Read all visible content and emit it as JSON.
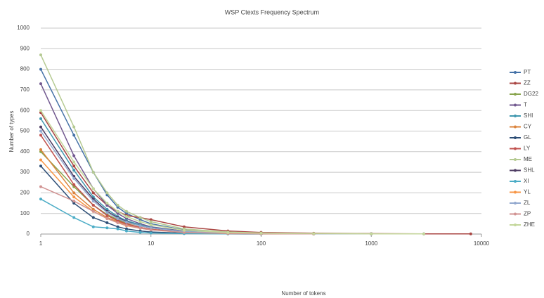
{
  "chart_data": {
    "type": "line",
    "title": "WSP Ctexts Frequency Spectrum",
    "x_label": "Number of tokens",
    "y_label": "Number of types",
    "log_x": true,
    "grid": true,
    "legend": "right",
    "xlim": [
      1,
      10000
    ],
    "xticks": [
      1,
      10,
      100,
      1000,
      10000
    ],
    "ylim": [
      0,
      1000
    ],
    "yticks": [
      0,
      100,
      200,
      300,
      400,
      500,
      600,
      700,
      800,
      900,
      1000
    ],
    "x": [
      1,
      2,
      3,
      4,
      5,
      6,
      8,
      10,
      20,
      50,
      100,
      300,
      1000,
      3000,
      8000
    ],
    "series": [
      {
        "name": "PT",
        "color": "#4572a7",
        "values": [
          800,
          480,
          300,
          190,
          130,
          100,
          70,
          50,
          20,
          8,
          4,
          2,
          1,
          1,
          null
        ]
      },
      {
        "name": "ZZ",
        "color": "#aa4643",
        "values": [
          590,
          330,
          200,
          140,
          110,
          90,
          80,
          70,
          35,
          15,
          8,
          4,
          2,
          1,
          1
        ]
      },
      {
        "name": "DG22",
        "color": "#89a54e",
        "values": [
          400,
          230,
          140,
          95,
          70,
          55,
          40,
          30,
          15,
          6,
          3,
          2,
          1,
          null,
          null
        ]
      },
      {
        "name": "T",
        "color": "#71588f",
        "values": [
          730,
          380,
          220,
          140,
          100,
          75,
          50,
          35,
          14,
          5,
          3,
          1,
          1,
          null,
          null
        ]
      },
      {
        "name": "SHI",
        "color": "#4198af",
        "values": [
          560,
          310,
          180,
          120,
          85,
          65,
          45,
          32,
          12,
          5,
          2,
          1,
          1,
          null,
          null
        ]
      },
      {
        "name": "CY",
        "color": "#db843d",
        "values": [
          410,
          200,
          120,
          80,
          60,
          45,
          30,
          22,
          9,
          4,
          2,
          1,
          null,
          null,
          null
        ]
      },
      {
        "name": "GL",
        "color": "#2c4d75",
        "values": [
          330,
          150,
          80,
          55,
          35,
          25,
          15,
          10,
          4,
          2,
          1,
          null,
          null,
          null,
          null
        ]
      },
      {
        "name": "LY",
        "color": "#c0504d",
        "values": [
          480,
          240,
          140,
          90,
          65,
          50,
          32,
          23,
          9,
          4,
          2,
          1,
          1,
          null,
          null
        ]
      },
      {
        "name": "ME",
        "color": "#b5ca92",
        "values": [
          870,
          520,
          300,
          200,
          140,
          110,
          80,
          60,
          25,
          10,
          5,
          2,
          1,
          1,
          null
        ]
      },
      {
        "name": "SHL",
        "color": "#4d3b62",
        "values": [
          520,
          280,
          170,
          110,
          80,
          60,
          40,
          30,
          12,
          5,
          2,
          1,
          1,
          null,
          null
        ]
      },
      {
        "name": "XI",
        "color": "#4bacc6",
        "values": [
          170,
          80,
          35,
          30,
          25,
          15,
          8,
          5,
          2,
          1,
          null,
          null,
          null,
          null,
          null
        ]
      },
      {
        "name": "YL",
        "color": "#f79646",
        "values": [
          360,
          180,
          110,
          75,
          55,
          40,
          28,
          20,
          8,
          3,
          2,
          1,
          null,
          null,
          null
        ]
      },
      {
        "name": "ZL",
        "color": "#93a9cf",
        "values": [
          500,
          270,
          160,
          105,
          75,
          58,
          40,
          30,
          12,
          5,
          3,
          1,
          1,
          1,
          null
        ]
      },
      {
        "name": "ZP",
        "color": "#d19392",
        "values": [
          230,
          160,
          110,
          75,
          55,
          42,
          28,
          20,
          8,
          3,
          2,
          1,
          null,
          null,
          null
        ]
      },
      {
        "name": "ZHE",
        "color": "#c4d79b",
        "values": [
          600,
          350,
          220,
          150,
          110,
          85,
          60,
          45,
          18,
          7,
          4,
          2,
          1,
          1,
          null
        ]
      }
    ]
  }
}
